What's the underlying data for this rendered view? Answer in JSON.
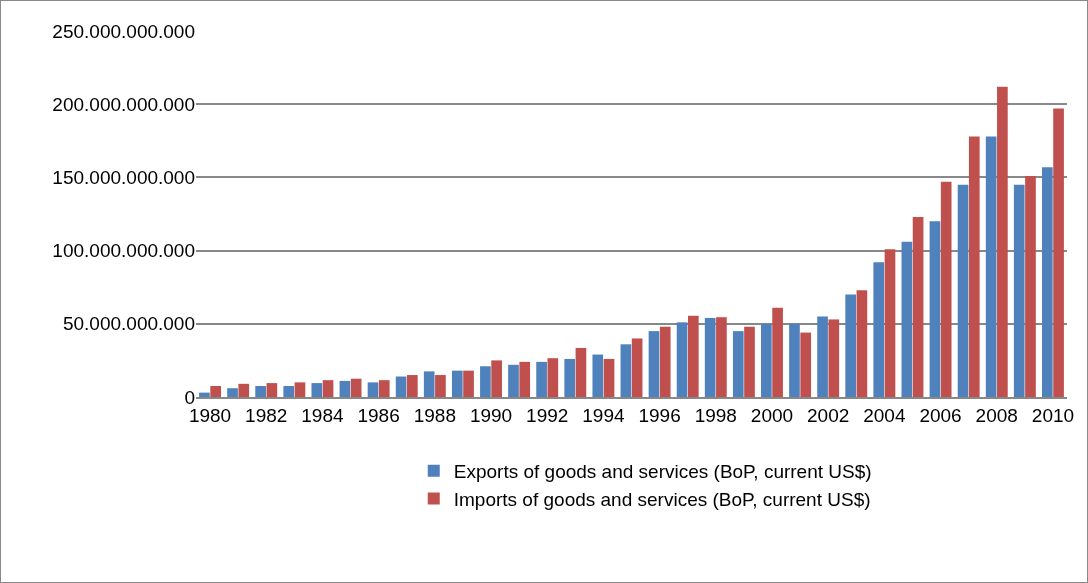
{
  "chart_data": {
    "type": "bar",
    "categories": [
      "1980",
      null,
      "1982",
      null,
      "1984",
      null,
      "1986",
      null,
      "1988",
      null,
      "1990",
      null,
      "1992",
      null,
      "1994",
      null,
      "1996",
      null,
      "1998",
      null,
      "2000",
      null,
      "2002",
      null,
      "2004",
      null,
      "2006",
      null,
      "2008",
      null,
      "2010"
    ],
    "series": [
      {
        "name": "Exports of goods and services (BoP, current US$)",
        "color": "#4f81bd",
        "values": [
          3000000000,
          6000000000,
          7500000000,
          7500000000,
          9500000000,
          11000000000,
          10000000000,
          14000000000,
          17500000000,
          18000000000,
          21000000000,
          22000000000,
          24000000000,
          26000000000,
          29000000000,
          36000000000,
          45000000000,
          51000000000,
          54000000000,
          45000000000,
          50000000000,
          50000000000,
          55000000000,
          70000000000,
          92000000000,
          106000000000,
          120000000000,
          145000000000,
          178000000000,
          145000000000,
          157000000000
        ]
      },
      {
        "name": "Imports of goods and services (BoP, current US$)",
        "color": "#c0504d",
        "values": [
          7500000000,
          9000000000,
          9500000000,
          10000000000,
          11500000000,
          12500000000,
          11500000000,
          15000000000,
          15000000000,
          18000000000,
          25000000000,
          24000000000,
          26500000000,
          33500000000,
          26000000000,
          40000000000,
          48000000000,
          55500000000,
          54500000000,
          48000000000,
          61000000000,
          44000000000,
          53000000000,
          73000000000,
          101000000000,
          123000000000,
          147000000000,
          178000000000,
          212000000000,
          151000000000,
          197000000000
        ]
      }
    ],
    "ylim": [
      0,
      250000000000
    ],
    "yticks": [
      {
        "value": 0,
        "label": "0"
      },
      {
        "value": 50000000000,
        "label": "50.000.000.000"
      },
      {
        "value": 100000000000,
        "label": "100.000.000.000"
      },
      {
        "value": 150000000000,
        "label": "150.000.000.000"
      },
      {
        "value": 200000000000,
        "label": "200.000.000.000"
      },
      {
        "value": 250000000000,
        "label": "250.000.000.000"
      }
    ],
    "grid": "y",
    "legend": "bottom"
  }
}
